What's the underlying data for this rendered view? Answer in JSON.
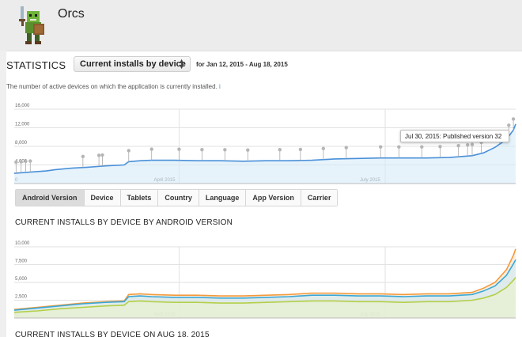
{
  "app": {
    "title": "Orcs",
    "icon": "orc-warrior-icon"
  },
  "stats": {
    "label": "STATISTICS",
    "selected_metric": "Current installs by device",
    "date_range": "for Jan 12, 2015 - Aug 18, 2015",
    "description": "The number of active devices on which the application is currently installed.",
    "info_link": "i"
  },
  "tooltip": {
    "text": "Jul 30, 2015: Published version 32"
  },
  "tabs": [
    {
      "label": "Android Version",
      "active": true
    },
    {
      "label": "Device",
      "active": false
    },
    {
      "label": "Tablets",
      "active": false
    },
    {
      "label": "Country",
      "active": false
    },
    {
      "label": "Language",
      "active": false
    },
    {
      "label": "App Version",
      "active": false
    },
    {
      "label": "Carrier",
      "active": false
    }
  ],
  "section_title": "CURRENT INSTALLS BY DEVICE BY ANDROID VERSION",
  "section_title_2": "CURRENT INSTALLS BY DEVICE ON AUG 18, 2015",
  "colors": {
    "line": "#4a90d9",
    "fill": "#d6ebf8",
    "orange": "#f39a3c",
    "teal": "#3aa8d6",
    "green": "#b3cf48",
    "accent": "#3b8fd6"
  },
  "chart_data": [
    {
      "type": "area",
      "xlabel": "",
      "ylabel": "",
      "ylim": [
        0,
        16000
      ],
      "yticks": [
        "0",
        "4,000",
        "8,000",
        "12,000",
        "16,000"
      ],
      "xtick_labels": [
        "April 2015",
        "July 2015"
      ],
      "grid": true,
      "x": [
        0,
        8,
        14,
        18,
        25,
        32,
        40,
        48,
        50,
        55,
        60,
        70,
        80,
        90,
        100,
        110,
        120,
        130,
        140,
        150,
        160,
        170,
        180,
        190,
        200,
        205,
        210,
        215,
        218,
        219
      ],
      "series": [
        {
          "values": [
            2200,
            2500,
            2700,
            3000,
            3300,
            3500,
            3800,
            4000,
            4700,
            4900,
            5000,
            5000,
            4900,
            4900,
            4800,
            4900,
            4900,
            5000,
            5300,
            5400,
            5500,
            5500,
            5500,
            5600,
            6000,
            6600,
            7800,
            9500,
            11500,
            12800
          ]
        }
      ],
      "annotation_markers": 31
    },
    {
      "type": "area",
      "xlabel": "",
      "ylabel": "",
      "ylim": [
        0,
        10000
      ],
      "yticks": [
        "0",
        "2,500",
        "5,000",
        "7,500",
        "10,000"
      ],
      "xtick_labels": [
        "April 2015",
        "July 2015"
      ],
      "grid": true,
      "x": [
        0,
        10,
        20,
        30,
        40,
        48,
        50,
        55,
        60,
        70,
        80,
        90,
        100,
        110,
        120,
        130,
        140,
        150,
        160,
        170,
        180,
        190,
        200,
        205,
        210,
        215,
        218,
        219
      ],
      "series": [
        {
          "values": [
            1200,
            1500,
            1800,
            2100,
            2300,
            2400,
            3300,
            3400,
            3300,
            3200,
            3200,
            3100,
            3100,
            3200,
            3300,
            3500,
            3500,
            3400,
            3400,
            3300,
            3400,
            3400,
            3600,
            4200,
            5000,
            6800,
            8800,
            9700
          ]
        },
        {
          "values": [
            1100,
            1400,
            1700,
            2000,
            2200,
            2300,
            3000,
            3100,
            3000,
            2900,
            2900,
            2800,
            2800,
            2900,
            3000,
            3200,
            3200,
            3100,
            3100,
            3000,
            3100,
            3100,
            3300,
            3800,
            4500,
            6000,
            7600,
            8200
          ]
        },
        {
          "values": [
            800,
            1000,
            1300,
            1500,
            1700,
            1800,
            2300,
            2400,
            2300,
            2200,
            2200,
            2100,
            2100,
            2200,
            2300,
            2400,
            2400,
            2300,
            2300,
            2200,
            2300,
            2300,
            2500,
            2800,
            3300,
            4300,
            5300,
            5700
          ]
        }
      ]
    }
  ]
}
